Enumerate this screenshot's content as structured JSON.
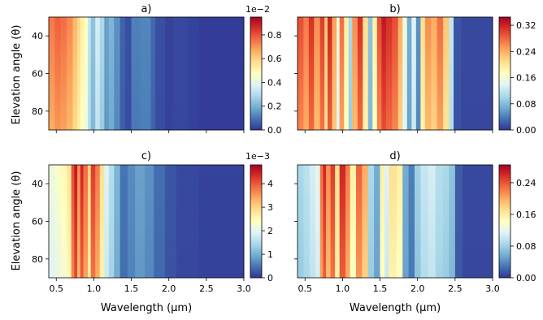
{
  "chart_data": [
    {
      "type": "heatmap",
      "title": "a)",
      "ylabel": "Elevation angle (θ)",
      "xlabel": "",
      "xlim": [
        0.4,
        3.0
      ],
      "ylim": [
        90,
        30
      ],
      "xticks": [
        "0.5",
        "1.0",
        "1.5",
        "2.0",
        "2.5",
        "3.0"
      ],
      "yticks": [
        "40",
        "60",
        "80"
      ],
      "colorbar": {
        "min": 0.0,
        "max": 0.0095,
        "ticks": [
          "0.0",
          "0.2",
          "0.4",
          "0.6",
          "0.8"
        ],
        "multiplier": "1e−2"
      },
      "bands": [
        [
          0.4,
          0.48,
          0.78
        ],
        [
          0.48,
          0.56,
          0.82
        ],
        [
          0.56,
          0.64,
          0.8
        ],
        [
          0.64,
          0.72,
          0.76
        ],
        [
          0.72,
          0.78,
          0.68
        ],
        [
          0.78,
          0.82,
          0.62
        ],
        [
          0.82,
          0.87,
          0.55
        ],
        [
          0.87,
          0.92,
          0.5
        ],
        [
          0.92,
          0.96,
          0.35
        ],
        [
          0.96,
          1.02,
          0.25
        ],
        [
          1.02,
          1.08,
          0.38
        ],
        [
          1.08,
          1.14,
          0.3
        ],
        [
          1.14,
          1.2,
          0.18
        ],
        [
          1.2,
          1.27,
          0.22
        ],
        [
          1.27,
          1.35,
          0.15
        ],
        [
          1.35,
          1.42,
          0.07
        ],
        [
          1.42,
          1.5,
          0.04
        ],
        [
          1.5,
          1.62,
          0.12
        ],
        [
          1.62,
          1.76,
          0.13
        ],
        [
          1.76,
          1.82,
          0.08
        ],
        [
          1.82,
          1.95,
          0.04
        ],
        [
          1.95,
          2.05,
          0.02
        ],
        [
          2.05,
          2.25,
          0.03
        ],
        [
          2.25,
          2.4,
          0.02
        ],
        [
          2.4,
          2.6,
          0.01
        ],
        [
          2.6,
          3.0,
          0.01
        ]
      ]
    },
    {
      "type": "heatmap",
      "title": "b)",
      "ylabel": "",
      "xlabel": "",
      "xlim": [
        0.4,
        3.0
      ],
      "ylim": [
        90,
        30
      ],
      "xticks": [
        "0.5",
        "1.0",
        "1.5",
        "2.0",
        "2.5",
        "3.0"
      ],
      "yticks": [
        "40",
        "60",
        "80"
      ],
      "colorbar": {
        "min": 0.0,
        "max": 0.345,
        "ticks": [
          "0.00",
          "0.08",
          "0.16",
          "0.24",
          "0.32"
        ],
        "multiplier": ""
      },
      "bands": [
        [
          0.4,
          0.48,
          0.85
        ],
        [
          0.48,
          0.55,
          0.78
        ],
        [
          0.55,
          0.62,
          0.9
        ],
        [
          0.62,
          0.7,
          0.75
        ],
        [
          0.7,
          0.76,
          0.88
        ],
        [
          0.76,
          0.8,
          0.65
        ],
        [
          0.8,
          0.86,
          0.92
        ],
        [
          0.86,
          0.92,
          0.72
        ],
        [
          0.92,
          0.96,
          0.45
        ],
        [
          0.96,
          1.02,
          0.8
        ],
        [
          1.02,
          1.08,
          0.55
        ],
        [
          1.08,
          1.13,
          0.3
        ],
        [
          1.13,
          1.2,
          0.75
        ],
        [
          1.2,
          1.27,
          0.9
        ],
        [
          1.27,
          1.34,
          0.6
        ],
        [
          1.34,
          1.4,
          0.25
        ],
        [
          1.4,
          1.46,
          0.55
        ],
        [
          1.46,
          1.52,
          0.85
        ],
        [
          1.52,
          1.58,
          0.95
        ],
        [
          1.58,
          1.66,
          0.9
        ],
        [
          1.66,
          1.74,
          0.85
        ],
        [
          1.74,
          1.8,
          0.7
        ],
        [
          1.8,
          1.86,
          0.45
        ],
        [
          1.86,
          1.92,
          0.2
        ],
        [
          1.92,
          1.98,
          0.4
        ],
        [
          1.98,
          2.04,
          0.15
        ],
        [
          2.04,
          2.1,
          0.6
        ],
        [
          2.1,
          2.18,
          0.75
        ],
        [
          2.18,
          2.26,
          0.7
        ],
        [
          2.26,
          2.34,
          0.8
        ],
        [
          2.34,
          2.42,
          0.65
        ],
        [
          2.42,
          2.48,
          0.35
        ],
        [
          2.48,
          2.58,
          0.05
        ],
        [
          2.58,
          3.0,
          0.03
        ]
      ]
    },
    {
      "type": "heatmap",
      "title": "c)",
      "ylabel": "Elevation angle (θ)",
      "xlabel": "Wavelength (μm)",
      "xlim": [
        0.4,
        3.0
      ],
      "ylim": [
        90,
        30
      ],
      "xticks": [
        "0.5",
        "1.0",
        "1.5",
        "2.0",
        "2.5",
        "3.0"
      ],
      "yticks": [
        "40",
        "60",
        "80"
      ],
      "colorbar": {
        "min": 0.0,
        "max": 0.0048,
        "ticks": [
          "0",
          "1",
          "2",
          "3",
          "4"
        ],
        "multiplier": "1e−3"
      },
      "bands": [
        [
          0.4,
          0.48,
          0.45
        ],
        [
          0.48,
          0.56,
          0.48
        ],
        [
          0.56,
          0.64,
          0.52
        ],
        [
          0.64,
          0.7,
          0.58
        ],
        [
          0.7,
          0.74,
          0.85
        ],
        [
          0.74,
          0.78,
          0.95
        ],
        [
          0.78,
          0.82,
          0.75
        ],
        [
          0.82,
          0.86,
          0.92
        ],
        [
          0.86,
          0.92,
          0.8
        ],
        [
          0.92,
          0.96,
          0.62
        ],
        [
          0.96,
          1.02,
          0.88
        ],
        [
          1.02,
          1.08,
          0.78
        ],
        [
          1.08,
          1.14,
          0.6
        ],
        [
          1.14,
          1.2,
          0.4
        ],
        [
          1.2,
          1.27,
          0.32
        ],
        [
          1.27,
          1.35,
          0.22
        ],
        [
          1.35,
          1.45,
          0.1
        ],
        [
          1.45,
          1.55,
          0.14
        ],
        [
          1.55,
          1.68,
          0.18
        ],
        [
          1.68,
          1.8,
          0.15
        ],
        [
          1.8,
          1.95,
          0.09
        ],
        [
          1.95,
          2.1,
          0.05
        ],
        [
          2.1,
          2.4,
          0.03
        ],
        [
          2.4,
          3.0,
          0.02
        ]
      ]
    },
    {
      "type": "heatmap",
      "title": "d)",
      "ylabel": "",
      "xlabel": "Wavelength (μm)",
      "xlim": [
        0.4,
        3.0
      ],
      "ylim": [
        90,
        30
      ],
      "xticks": [
        "0.5",
        "1.0",
        "1.5",
        "2.0",
        "2.5",
        "3.0"
      ],
      "yticks": [
        "40",
        "60",
        "80"
      ],
      "colorbar": {
        "min": 0.0,
        "max": 0.285,
        "ticks": [
          "0.00",
          "0.08",
          "0.16",
          "0.24"
        ],
        "multiplier": ""
      },
      "bands": [
        [
          0.4,
          0.48,
          0.3
        ],
        [
          0.48,
          0.56,
          0.33
        ],
        [
          0.56,
          0.64,
          0.38
        ],
        [
          0.64,
          0.7,
          0.42
        ],
        [
          0.7,
          0.74,
          0.8
        ],
        [
          0.74,
          0.78,
          0.92
        ],
        [
          0.78,
          0.84,
          0.75
        ],
        [
          0.84,
          0.9,
          0.88
        ],
        [
          0.9,
          0.96,
          0.6
        ],
        [
          0.96,
          1.04,
          0.92
        ],
        [
          1.04,
          1.1,
          0.78
        ],
        [
          1.1,
          1.18,
          0.55
        ],
        [
          1.18,
          1.26,
          0.82
        ],
        [
          1.26,
          1.34,
          0.7
        ],
        [
          1.34,
          1.42,
          0.3
        ],
        [
          1.42,
          1.5,
          0.2
        ],
        [
          1.5,
          1.56,
          0.55
        ],
        [
          1.56,
          1.62,
          0.4
        ],
        [
          1.62,
          1.72,
          0.6
        ],
        [
          1.72,
          1.8,
          0.55
        ],
        [
          1.8,
          1.88,
          0.2
        ],
        [
          1.88,
          1.96,
          0.12
        ],
        [
          1.96,
          2.04,
          0.28
        ],
        [
          2.04,
          2.14,
          0.35
        ],
        [
          2.14,
          2.24,
          0.38
        ],
        [
          2.24,
          2.34,
          0.32
        ],
        [
          2.34,
          2.42,
          0.3
        ],
        [
          2.42,
          2.5,
          0.25
        ],
        [
          2.5,
          2.6,
          0.06
        ],
        [
          2.6,
          3.0,
          0.03
        ]
      ]
    }
  ]
}
